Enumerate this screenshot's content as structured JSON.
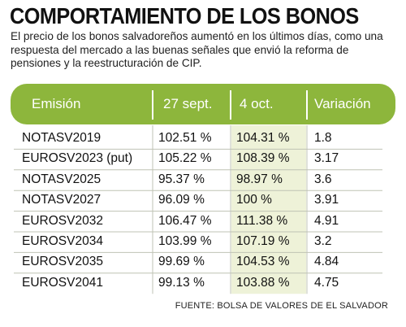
{
  "title": "COMPORTAMIENTO DE LOS BONOS",
  "subtitle": "El precio de los bonos salvadoreños aumentó en los últimos días, como una respuesta del mercado a las buenas señales que envió la reforma de pensiones y la reestructuración de CIP.",
  "source": "FUENTE: BOLSA DE VALORES DE EL SALVADOR",
  "colors": {
    "header_green": "#8db63c",
    "column_tint": "#eef2d8",
    "grid_line": "#bfc3b4"
  },
  "chart_data": {
    "type": "table",
    "columns": [
      "Emisión",
      "27 sept.",
      "4 oct.",
      "Variación"
    ],
    "rows": [
      [
        "NOTASV2019",
        "102.51 %",
        "104.31 %",
        "1.8"
      ],
      [
        "EUROSV2023 (put)",
        "105.22 %",
        "108.39 %",
        "3.17"
      ],
      [
        "NOTASV2025",
        "95.37 %",
        "98.97 %",
        "3.6"
      ],
      [
        "NOTASV2027",
        "96.09 %",
        "100 %",
        "3.91"
      ],
      [
        "EUROSV2032",
        "106.47 %",
        "111.38 %",
        "4.91"
      ],
      [
        "EUROSV2034",
        "103.99 %",
        "107.19 %",
        "3.2"
      ],
      [
        "EUROSV2035",
        "99.69 %",
        "104.53 %",
        "4.84"
      ],
      [
        "EUROSV2041",
        "99.13 %",
        "103.88 %",
        "4.75"
      ]
    ]
  }
}
